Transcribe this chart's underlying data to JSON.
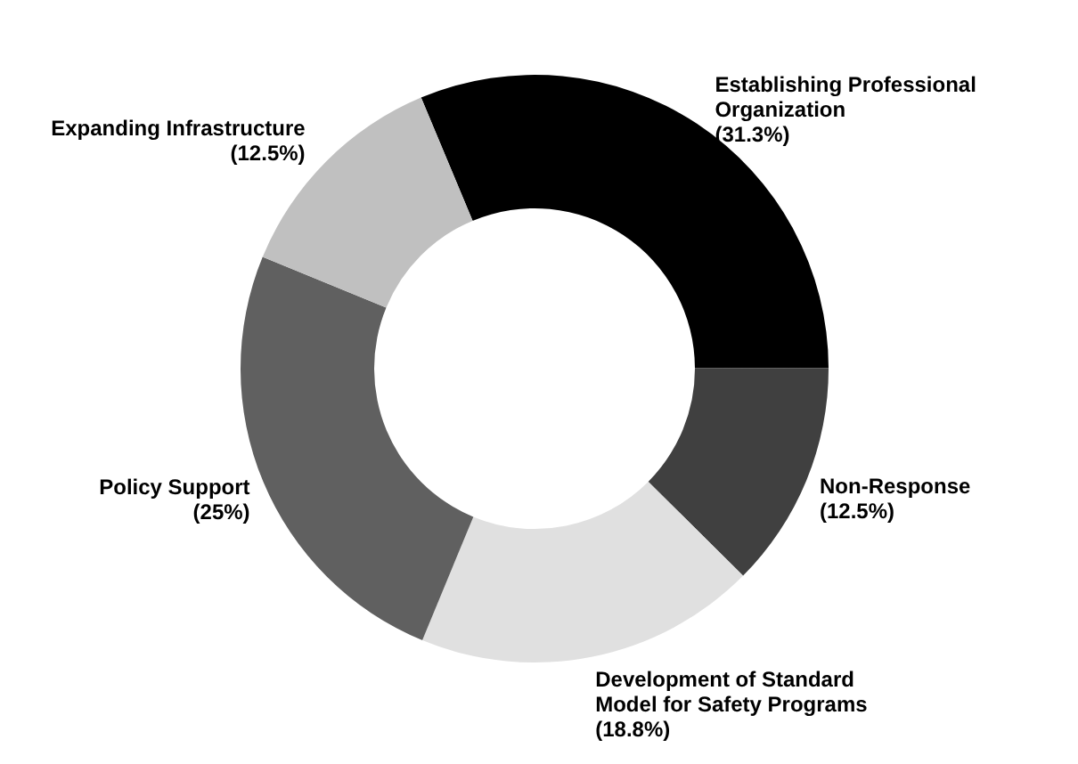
{
  "chart_data": {
    "type": "donut",
    "categories": [
      "Establishing Professional Organization",
      "Non-Response",
      "Development of Standard Model for Safety Programs",
      "Policy  Support",
      "Expanding Infrastructure"
    ],
    "values": [
      31.3,
      12.5,
      18.8,
      25,
      12.5
    ],
    "colors": [
      "#000000",
      "#404040",
      "#e0e0e0",
      "#606060",
      "#c0c0c0"
    ],
    "value_labels": [
      "(31.3%)",
      "(12.5%)",
      "(18.8%)",
      "(25%)",
      "(12.5%)"
    ]
  }
}
